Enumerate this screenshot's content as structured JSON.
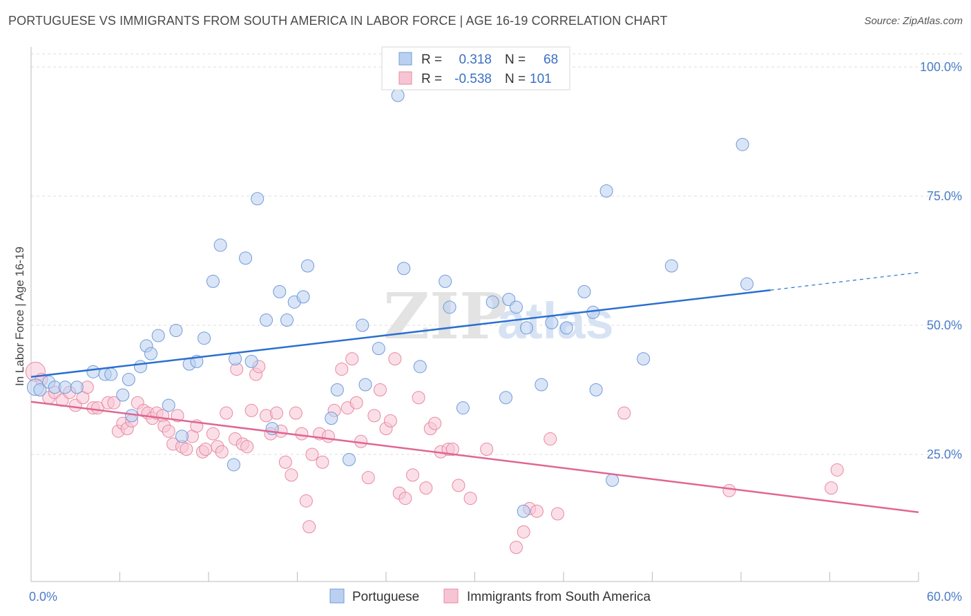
{
  "title": "PORTUGUESE VS IMMIGRANTS FROM SOUTH AMERICA IN LABOR FORCE | AGE 16-19 CORRELATION CHART",
  "source": "Source: ZipAtlas.com",
  "watermark": {
    "zip": "ZIP",
    "atlas": "atlas"
  },
  "colors": {
    "blue_fill": "#b9d0f0",
    "blue_stroke": "#6f9bd8",
    "blue_line": "#2a6fd0",
    "pink_fill": "#f7c4d5",
    "pink_stroke": "#e8889f",
    "pink_line": "#e06593",
    "grid": "#dcdcdc",
    "tick_text": "#4a7cc9"
  },
  "chart_data": {
    "type": "scatter",
    "title": "PORTUGUESE VS IMMIGRANTS FROM SOUTH AMERICA IN LABOR FORCE | AGE 16-19 CORRELATION CHART",
    "ylabel": "In Labor Force | Age 16-19",
    "xlabel": "",
    "xlim": [
      0,
      60
    ],
    "ylim": [
      0,
      102
    ],
    "x_ticks": [
      "0.0%",
      "60.0%"
    ],
    "y_ticks": [
      {
        "value": 100,
        "label": "100.0%"
      },
      {
        "value": 75,
        "label": "75.0%"
      },
      {
        "value": 50,
        "label": "50.0%"
      },
      {
        "value": 25,
        "label": "25.0%"
      }
    ],
    "grid": true,
    "legend_position": "top-center",
    "legend": [
      {
        "r_label": "R =",
        "r_value": "0.318",
        "n_label": "N =",
        "n_value": "68"
      },
      {
        "r_label": "R =",
        "r_value": "-0.538",
        "n_label": "N =",
        "n_value": "101"
      }
    ],
    "series": [
      {
        "name": "Portuguese",
        "color": "#6f9bd8",
        "trend": {
          "x0": 0,
          "y0": 40.0,
          "x1": 50,
          "y1": 56.8,
          "dash_to_x": 60,
          "dash_to_y": 60.2
        },
        "points": [
          [
            0.3,
            38
          ],
          [
            0.6,
            37.5
          ],
          [
            1.2,
            39
          ],
          [
            1.6,
            38
          ],
          [
            2.3,
            38
          ],
          [
            3.1,
            38
          ],
          [
            4.2,
            41
          ],
          [
            5.0,
            40.5
          ],
          [
            5.4,
            40.5
          ],
          [
            6.2,
            36.5
          ],
          [
            6.6,
            39.5
          ],
          [
            6.8,
            32.5
          ],
          [
            7.4,
            42
          ],
          [
            7.8,
            46
          ],
          [
            8.1,
            44.5
          ],
          [
            8.6,
            48
          ],
          [
            9.3,
            34.5
          ],
          [
            9.8,
            49
          ],
          [
            10.2,
            28.5
          ],
          [
            10.7,
            42.5
          ],
          [
            11.2,
            43
          ],
          [
            11.7,
            47.5
          ],
          [
            12.3,
            58.5
          ],
          [
            12.8,
            65.5
          ],
          [
            13.7,
            23
          ],
          [
            13.8,
            43.5
          ],
          [
            14.5,
            63
          ],
          [
            14.9,
            43
          ],
          [
            15.3,
            74.5
          ],
          [
            15.9,
            51
          ],
          [
            16.3,
            30
          ],
          [
            16.8,
            56.5
          ],
          [
            17.3,
            51
          ],
          [
            17.8,
            54.5
          ],
          [
            18.4,
            55.5
          ],
          [
            18.7,
            61.5
          ],
          [
            20.3,
            32
          ],
          [
            20.7,
            37.5
          ],
          [
            21.5,
            24
          ],
          [
            22.4,
            50
          ],
          [
            22.6,
            38.5
          ],
          [
            23.5,
            45.5
          ],
          [
            24.8,
            94.5
          ],
          [
            25.2,
            61
          ],
          [
            26.3,
            42
          ],
          [
            28.0,
            58.5
          ],
          [
            28.3,
            53.5
          ],
          [
            29.2,
            34
          ],
          [
            31.2,
            54.5
          ],
          [
            32.1,
            36
          ],
          [
            32.3,
            55
          ],
          [
            32.8,
            53.5
          ],
          [
            33.3,
            14
          ],
          [
            33.5,
            49.5
          ],
          [
            34.5,
            38.5
          ],
          [
            35.2,
            50.5
          ],
          [
            36.2,
            49.5
          ],
          [
            37.4,
            56.5
          ],
          [
            38.0,
            52.5
          ],
          [
            38.2,
            37.5
          ],
          [
            38.9,
            76
          ],
          [
            39.3,
            20
          ],
          [
            41.4,
            43.5
          ],
          [
            43.3,
            61.5
          ],
          [
            48.1,
            85
          ],
          [
            48.4,
            58
          ]
        ]
      },
      {
        "name": "Immigrants from South America",
        "color": "#e8889f",
        "trend": {
          "x0": 0,
          "y0": 35.2,
          "x1": 60,
          "y1": 13.8
        },
        "points": [
          [
            0.3,
            41
          ],
          [
            0.7,
            39.5
          ],
          [
            1.2,
            36
          ],
          [
            1.6,
            37
          ],
          [
            2.1,
            35.5
          ],
          [
            2.6,
            37
          ],
          [
            3.0,
            34.5
          ],
          [
            3.5,
            36
          ],
          [
            3.8,
            38
          ],
          [
            4.2,
            34
          ],
          [
            4.5,
            34
          ],
          [
            5.2,
            35
          ],
          [
            5.6,
            35
          ],
          [
            5.9,
            29.5
          ],
          [
            6.2,
            31
          ],
          [
            6.5,
            30
          ],
          [
            6.8,
            31.5
          ],
          [
            7.2,
            35
          ],
          [
            7.6,
            33.5
          ],
          [
            7.9,
            33
          ],
          [
            8.2,
            32
          ],
          [
            8.5,
            33
          ],
          [
            8.9,
            32.5
          ],
          [
            9.0,
            30.5
          ],
          [
            9.3,
            29.5
          ],
          [
            9.6,
            27
          ],
          [
            9.9,
            32.5
          ],
          [
            10.2,
            26.5
          ],
          [
            10.5,
            26
          ],
          [
            10.9,
            28.5
          ],
          [
            11.2,
            30.5
          ],
          [
            11.6,
            25.5
          ],
          [
            11.8,
            26
          ],
          [
            12.3,
            29
          ],
          [
            12.6,
            26.5
          ],
          [
            12.9,
            25.5
          ],
          [
            13.2,
            33
          ],
          [
            13.8,
            28
          ],
          [
            13.9,
            41.5
          ],
          [
            14.3,
            27
          ],
          [
            14.6,
            26.5
          ],
          [
            14.9,
            33.5
          ],
          [
            15.2,
            40.5
          ],
          [
            15.4,
            42
          ],
          [
            15.9,
            32.5
          ],
          [
            16.2,
            29
          ],
          [
            16.6,
            33
          ],
          [
            16.9,
            29.5
          ],
          [
            17.2,
            23.5
          ],
          [
            17.6,
            21
          ],
          [
            17.9,
            33
          ],
          [
            18.3,
            29
          ],
          [
            18.6,
            16
          ],
          [
            18.8,
            11
          ],
          [
            19.0,
            25
          ],
          [
            19.5,
            29
          ],
          [
            19.7,
            23.5
          ],
          [
            20.1,
            28.5
          ],
          [
            20.5,
            33.5
          ],
          [
            21.0,
            41.5
          ],
          [
            21.4,
            34
          ],
          [
            21.7,
            43.5
          ],
          [
            22.0,
            35
          ],
          [
            22.3,
            27.5
          ],
          [
            22.8,
            20.5
          ],
          [
            23.2,
            32.5
          ],
          [
            23.6,
            37.5
          ],
          [
            24.0,
            30
          ],
          [
            24.3,
            31.5
          ],
          [
            24.6,
            43.5
          ],
          [
            24.9,
            17.5
          ],
          [
            25.3,
            16.5
          ],
          [
            25.8,
            21
          ],
          [
            26.2,
            36
          ],
          [
            26.7,
            18.5
          ],
          [
            27.0,
            30
          ],
          [
            27.3,
            31
          ],
          [
            27.7,
            25.5
          ],
          [
            28.2,
            26
          ],
          [
            28.5,
            26
          ],
          [
            28.9,
            19
          ],
          [
            29.7,
            16.5
          ],
          [
            30.8,
            26
          ],
          [
            32.8,
            7
          ],
          [
            33.3,
            10
          ],
          [
            33.7,
            14.5
          ],
          [
            34.2,
            14
          ],
          [
            35.1,
            28
          ],
          [
            35.6,
            13.5
          ],
          [
            40.1,
            33
          ],
          [
            47.2,
            18
          ],
          [
            54.1,
            18.5
          ],
          [
            54.5,
            22
          ]
        ]
      }
    ]
  },
  "bottom_legend": [
    {
      "label": "Portuguese"
    },
    {
      "label": "Immigrants from South America"
    }
  ]
}
